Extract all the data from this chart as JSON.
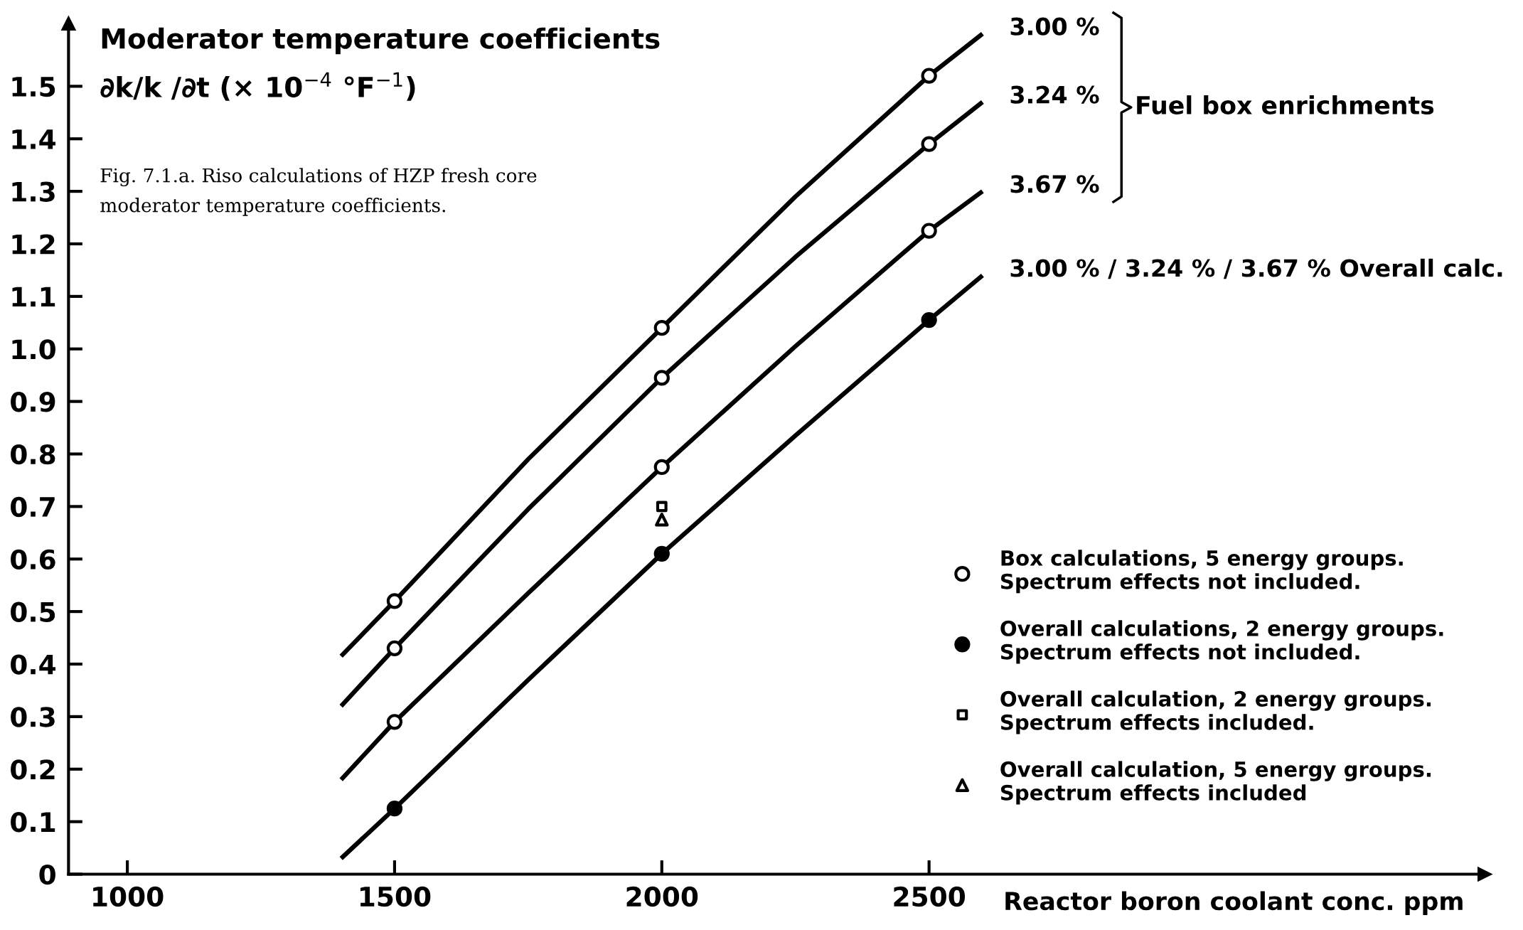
{
  "chart_data": {
    "type": "line",
    "title": "Moderator temperature coefficients",
    "ylabel": "∂k/k /∂t (× 10$^{−4}$ °F$^{−1}$)",
    "xlabel": "Reactor boron coolant conc. ppm",
    "xlim": [
      890,
      3540
    ],
    "ylim": [
      0,
      1.62
    ],
    "xticks": [
      1000,
      1500,
      2000,
      2500
    ],
    "yticks": [
      0,
      0.1,
      0.2,
      0.3,
      0.4,
      0.5,
      0.6,
      0.7,
      0.8,
      0.9,
      {
        "value": 1,
        "label": "1.0"
      },
      1.1,
      1.2,
      1.3,
      1.4,
      1.5
    ],
    "grid": false,
    "legend": "bottom right",
    "line_style": "solid",
    "annotations": [
      "Fuel box enrichments",
      "Fig. 7.1.a. Riso calculations of HZP fresh core\nmoderator temperature coefficients."
    ],
    "series": [
      {
        "name": "3.00 %",
        "color": "#000000",
        "marker": "none",
        "x": [
          1400,
          1500,
          1750,
          2000,
          2250,
          2500,
          2600
        ],
        "values": [
          0.415,
          0.52,
          0.79,
          1.04,
          1.29,
          1.52,
          1.6
        ]
      },
      {
        "name": "3.24 %",
        "color": "#000000",
        "marker": "none",
        "x": [
          1400,
          1500,
          1750,
          2000,
          2250,
          2500,
          2600
        ],
        "values": [
          0.32,
          0.43,
          0.695,
          0.945,
          1.175,
          1.39,
          1.47
        ]
      },
      {
        "name": "3.67 %",
        "color": "#000000",
        "marker": "none",
        "x": [
          1400,
          1500,
          1750,
          2000,
          2250,
          2500,
          2600
        ],
        "values": [
          0.18,
          0.29,
          0.535,
          0.775,
          1.005,
          1.225,
          1.3
        ]
      },
      {
        "name": "3.00 % / 3.24 % / 3.67 % Overall calc.",
        "color": "#000000",
        "marker": "none",
        "x": [
          1400,
          1500,
          1750,
          2000,
          2250,
          2500,
          2600
        ],
        "values": [
          0.03,
          0.125,
          0.37,
          0.61,
          0.835,
          1.055,
          1.14
        ]
      },
      {
        "name": "Box calculations, 5 energy groups.\nSpectrum effects not included.",
        "type": "scatter",
        "color": "#ffffff",
        "marker": "circle",
        "x": [
          1500,
          2000,
          2500,
          1500,
          2000,
          2500,
          1500,
          2000,
          2500
        ],
        "values": [
          0.52,
          1.04,
          1.52,
          0.43,
          0.945,
          1.39,
          0.29,
          0.775,
          1.225
        ]
      },
      {
        "name": "Overall calculations, 2 energy groups.\nSpectrum effects not included.",
        "type": "scatter",
        "color": "#000000",
        "marker": "circle",
        "x": [
          1500,
          2000,
          2500
        ],
        "values": [
          0.125,
          0.61,
          1.055
        ]
      },
      {
        "name": "Overall calculation, 2 energy groups.\nSpectrum effects included.",
        "type": "scatter",
        "color": "#ffffff",
        "marker": "square",
        "x": [
          2000
        ],
        "values": [
          0.7
        ]
      },
      {
        "name": "Overall calculation, 5 energy groups.\nSpectrum effects included",
        "type": "scatter",
        "color": "#ffffff",
        "marker": "triangle",
        "x": [
          2000
        ],
        "values": [
          0.675
        ]
      }
    ]
  }
}
